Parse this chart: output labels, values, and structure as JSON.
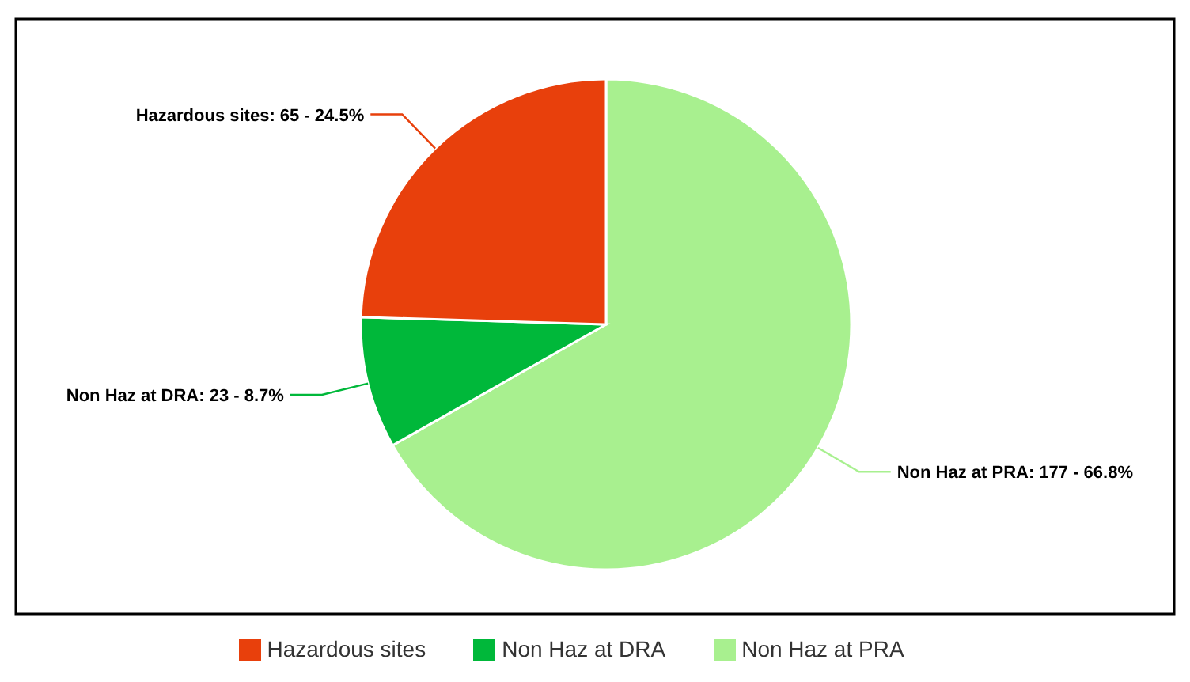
{
  "chart_data": {
    "type": "pie",
    "categories": [
      "Non Haz at PRA",
      "Non Haz at DRA",
      "Hazardous sites"
    ],
    "values": [
      177,
      23,
      65
    ],
    "value_labels": [
      "Non Haz at PRA: 177 - 66.8%",
      "Non Haz at DRA: 23 - 8.7%",
      "Hazardous sites: 65 - 24.5%"
    ],
    "colors": [
      "#a8f08f",
      "#00b83a",
      "#e8400c"
    ],
    "legend": "bottom"
  }
}
